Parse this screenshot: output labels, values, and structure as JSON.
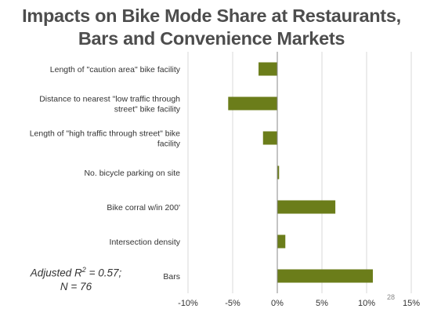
{
  "title_line1": "Impacts on Bike Mode Share at Restaurants,",
  "title_line2": "Bars and Convenience Markets",
  "stats": {
    "line1_prefix": "Adjusted R",
    "line1_sup": "2",
    "line1_suffix": " = 0.57;",
    "line2": "N = 76"
  },
  "page_number": "28",
  "colors": {
    "bar": "#6b7d1a",
    "grid": "#d9d9d9",
    "axis": "#888888",
    "text": "#333333"
  },
  "chart_data": {
    "type": "bar",
    "orientation": "horizontal",
    "categories": [
      "Length of \"caution area\" bike facility",
      "Distance to nearest \"low traffic through street\" bike facility",
      "Length of \"high traffic through street\" bike facility",
      "No. bicycle parking on site",
      "Bike corral w/in 200'",
      "Intersection density",
      "Bars"
    ],
    "values": [
      -2.1,
      -5.5,
      -1.6,
      0.2,
      6.5,
      0.9,
      10.7
    ],
    "xlim": [
      -10,
      15
    ],
    "xticks": [
      -10,
      -5,
      0,
      5,
      10,
      15
    ],
    "xtick_labels": [
      "-10%",
      "-5%",
      "0%",
      "5%",
      "10%",
      "15%"
    ],
    "grid": true,
    "legend": false
  }
}
